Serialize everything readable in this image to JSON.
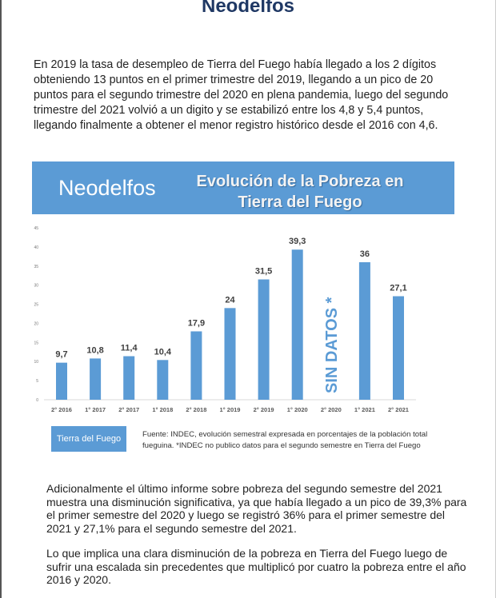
{
  "header": {
    "title": "Neodelfos"
  },
  "paragraphs": [
    "En 2019 la tasa de desempleo de Tierra del Fuego había llegado a los 2 dígitos obteniendo 13 puntos en el primer trimestre del 2019, llegando a un pico de 20 puntos para el segundo trimestre del 2020 en plena pandemia, luego del segundo trimestre del 2021 volvió a un digito y se estabilizó entre los 4,8 y 5,4 puntos, llegando finalmente a obtener el menor registro histórico desde el 2016 con 4,6.",
    "Adicionalmente el último informe sobre pobreza del segundo semestre del 2021 muestra una disminución significativa, ya que había llegado a un pico de 39,3% para el primer semestre del 2020 y luego se registró 36% para el primer semestre del 2021 y  27,1% para el segundo semestre del 2021.",
    "Lo que implica una clara disminución de la pobreza en Tierra del Fuego luego de sufrir una escalada sin precedentes que multiplicó por cuatro la pobreza entre el año 2016 y 2020."
  ],
  "chart_data": {
    "type": "bar",
    "brand": "Neodelfos",
    "title": "Evolución de la Pobreza en Tierra del Fuego",
    "categories": [
      "2° 2016",
      "1° 2017",
      "2° 2017",
      "1° 2018",
      "2° 2018",
      "1° 2019",
      "2° 2019",
      "1° 2020",
      "2° 2020",
      "1° 2021",
      "2° 2021"
    ],
    "values": [
      9.7,
      10.8,
      11.4,
      10.4,
      17.9,
      24,
      31.5,
      39.3,
      null,
      36,
      27.1
    ],
    "labels": [
      "9,7",
      "10,8",
      "11,4",
      "10,4",
      "17,9",
      "24",
      "31,5",
      "39,3",
      "",
      "36",
      "27,1"
    ],
    "missing_label": "SIN DATOS *",
    "yticks": [
      "0",
      "5",
      "10",
      "15",
      "20",
      "25",
      "30",
      "35",
      "40",
      "45"
    ],
    "ylim": [
      0,
      45
    ],
    "legend": "Tierra del Fuego",
    "source": "Fuente: INDEC, evolución semestral expresada en porcentajes de la población total fueguina. *INDEC no publico datos para el segundo semestre en Tierra del Fuego",
    "colors": {
      "bar": "#5b9bd5"
    }
  }
}
